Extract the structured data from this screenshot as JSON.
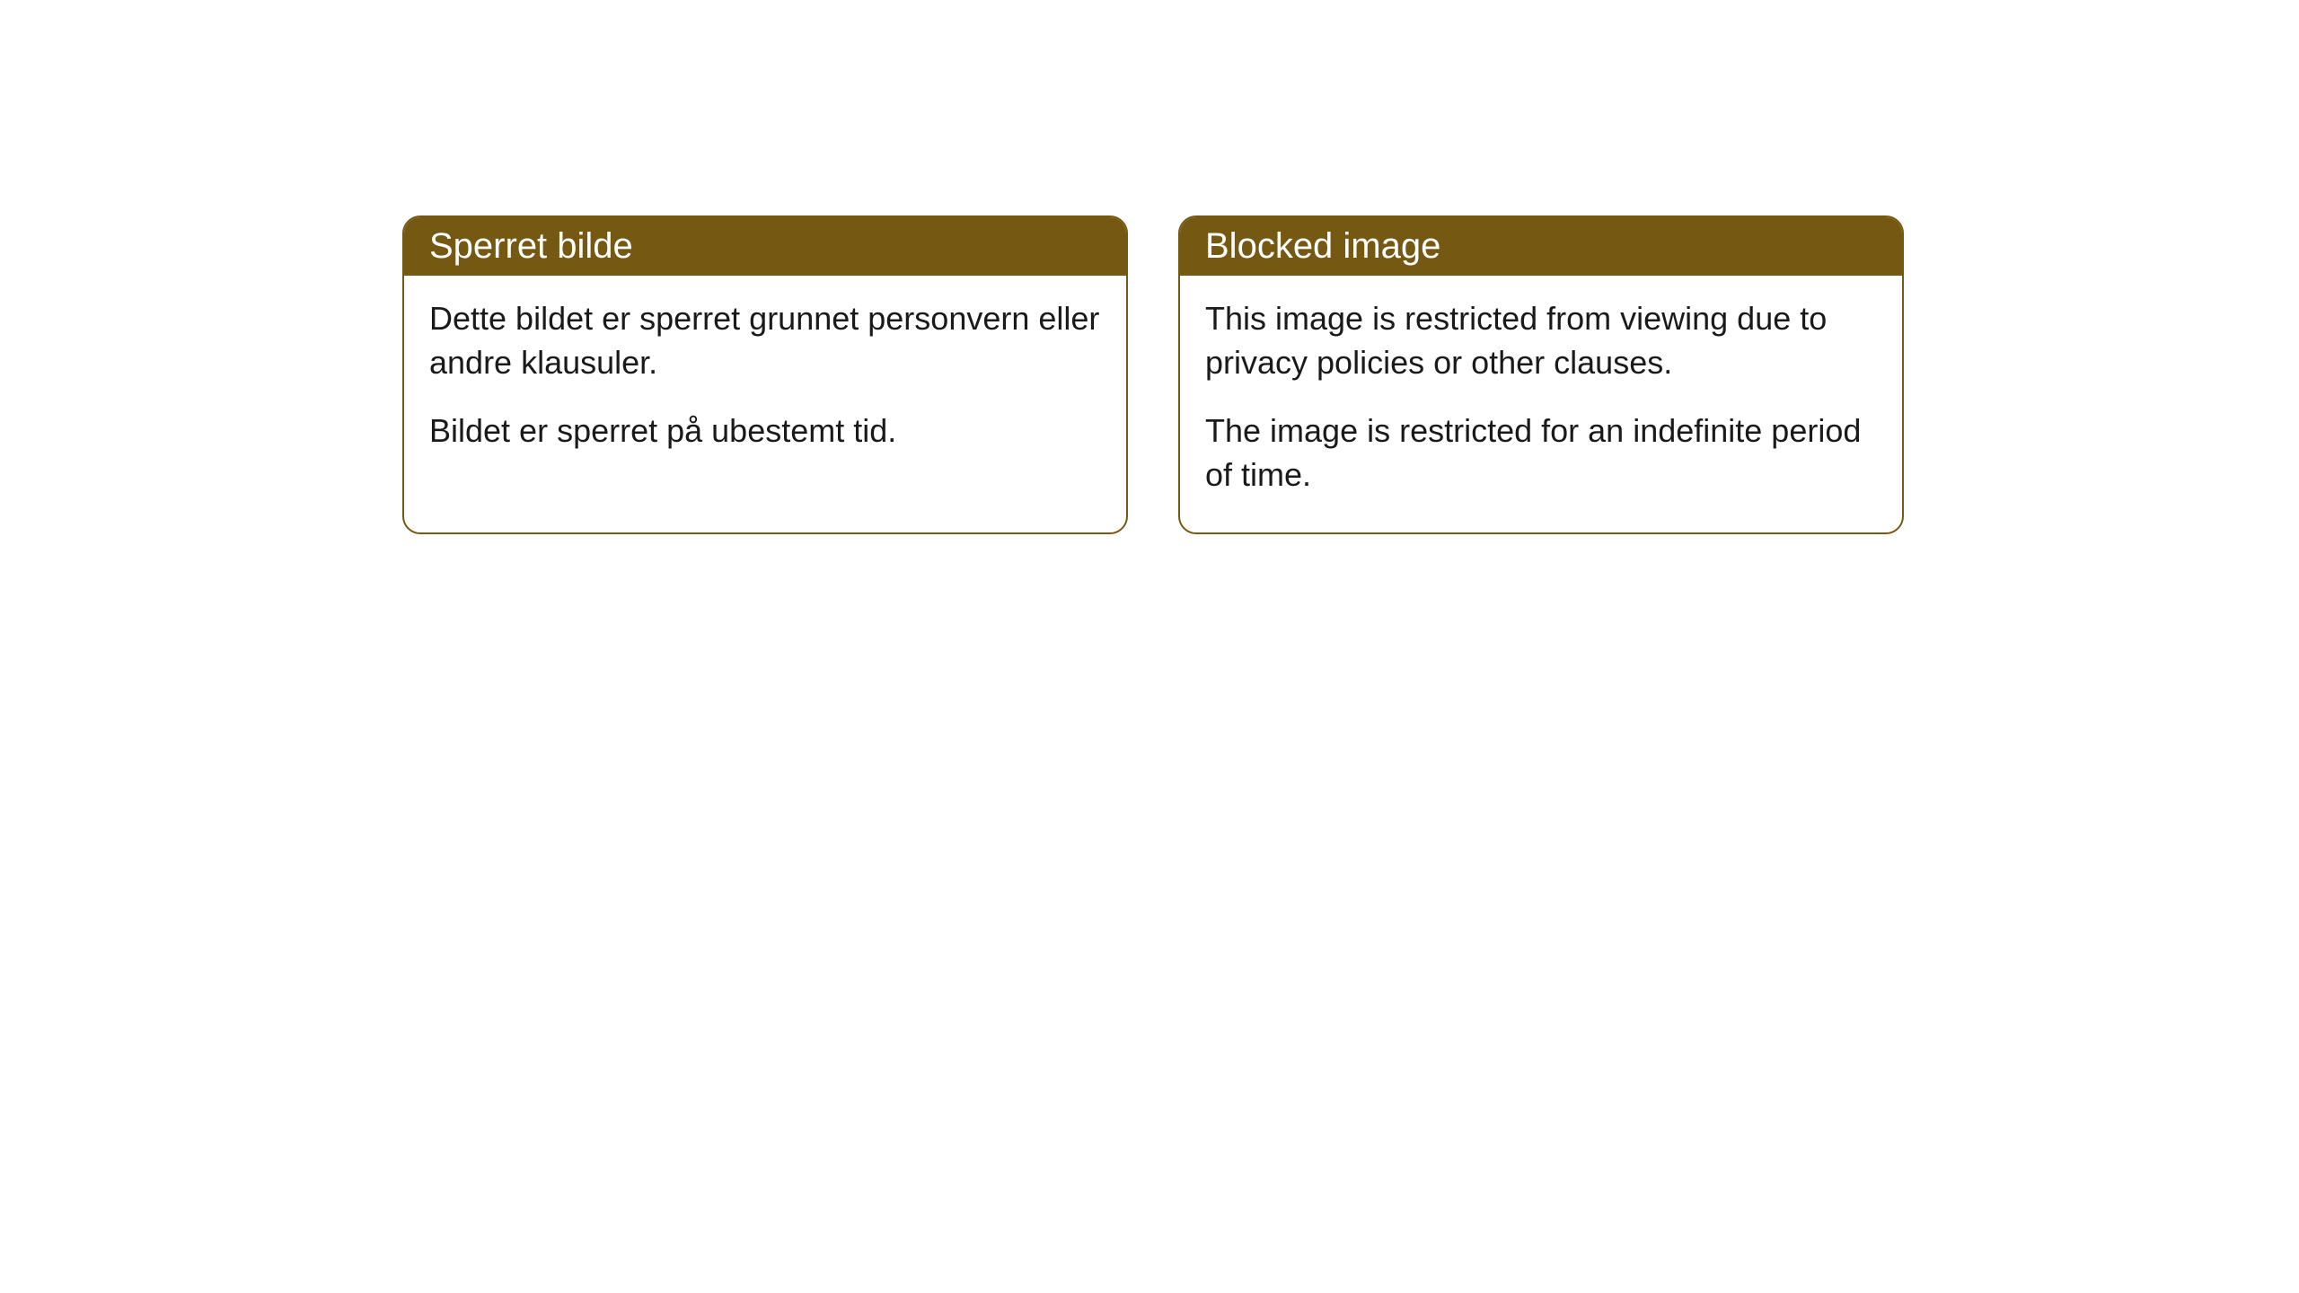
{
  "cards": [
    {
      "title": "Sperret bilde",
      "paragraph1": "Dette bildet er sperret grunnet personvern eller andre klausuler.",
      "paragraph2": "Bildet er sperret på ubestemt tid."
    },
    {
      "title": "Blocked image",
      "paragraph1": "This image is restricted from viewing due to privacy policies or other clauses.",
      "paragraph2": "The image is restricted for an indefinite period of time."
    }
  ],
  "styling": {
    "header_bg_color": "#755811",
    "header_text_color": "#ffffff",
    "border_color": "#755811",
    "card_bg_color": "#ffffff",
    "body_text_color": "#1a1a1a",
    "border_radius": 20,
    "title_fontsize": 40,
    "body_fontsize": 36,
    "page_bg_color": "#ffffff"
  }
}
